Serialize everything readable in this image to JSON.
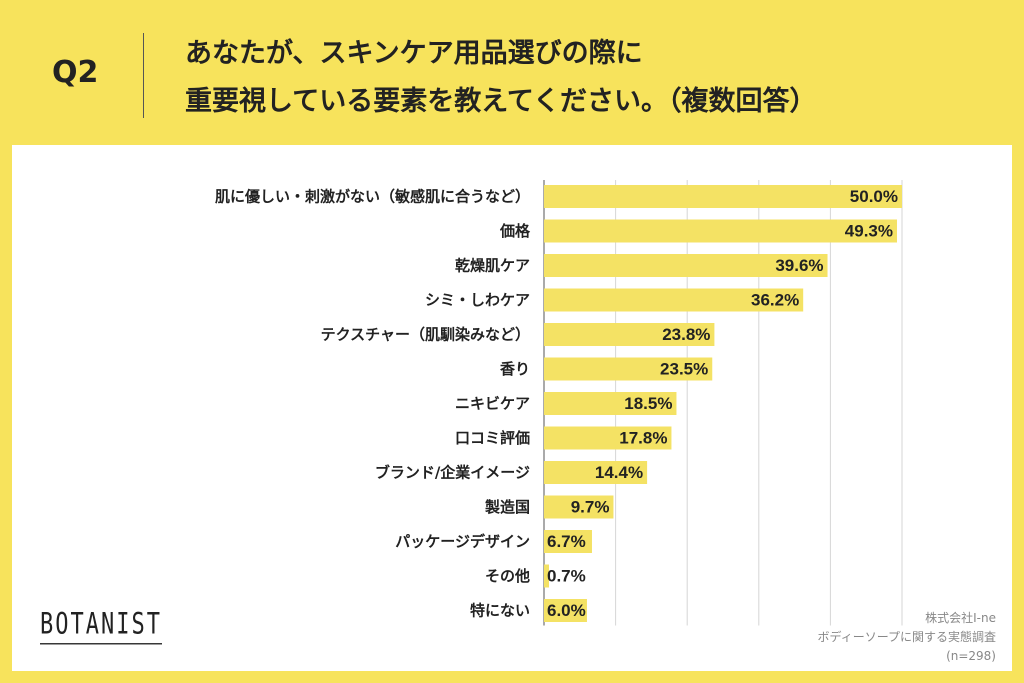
{
  "header": {
    "question": "Q2",
    "title_line1": "あなたが、スキンケア用品選びの際に",
    "title_line2": "重要視している要素を教えてください。（複数回答）"
  },
  "footer": {
    "logo": "BOTANIST",
    "source_line1": "株式会社I-ne",
    "source_line2": "ボディーソープに関する実態調査",
    "source_line3": "(n=298)"
  },
  "colors": {
    "background": "#f7e35c",
    "bar": "#f4e264",
    "panel": "#ffffff"
  },
  "chart_data": {
    "type": "bar",
    "orientation": "horizontal",
    "categories": [
      "肌に優しい・刺激がない（敏感肌に合うなど）",
      "価格",
      "乾燥肌ケア",
      "シミ・しわケア",
      "テクスチャー（肌馴染みなど）",
      "香り",
      "ニキビケア",
      "口コミ評価",
      "ブランド/企業イメージ",
      "製造国",
      "パッケージデザイン",
      "その他",
      "特にない"
    ],
    "values": [
      50.0,
      49.3,
      39.6,
      36.2,
      23.8,
      23.5,
      18.5,
      17.8,
      14.4,
      9.7,
      6.7,
      0.7,
      6.0
    ],
    "labels": [
      "50.0%",
      "49.3%",
      "39.6%",
      "36.2%",
      "23.8%",
      "23.5%",
      "18.5%",
      "17.8%",
      "14.4%",
      "9.7%",
      "6.7%",
      "0.7%",
      "6.0%"
    ],
    "unit": "%",
    "xlim": [
      0,
      50
    ],
    "grid": true,
    "legend": "none"
  }
}
